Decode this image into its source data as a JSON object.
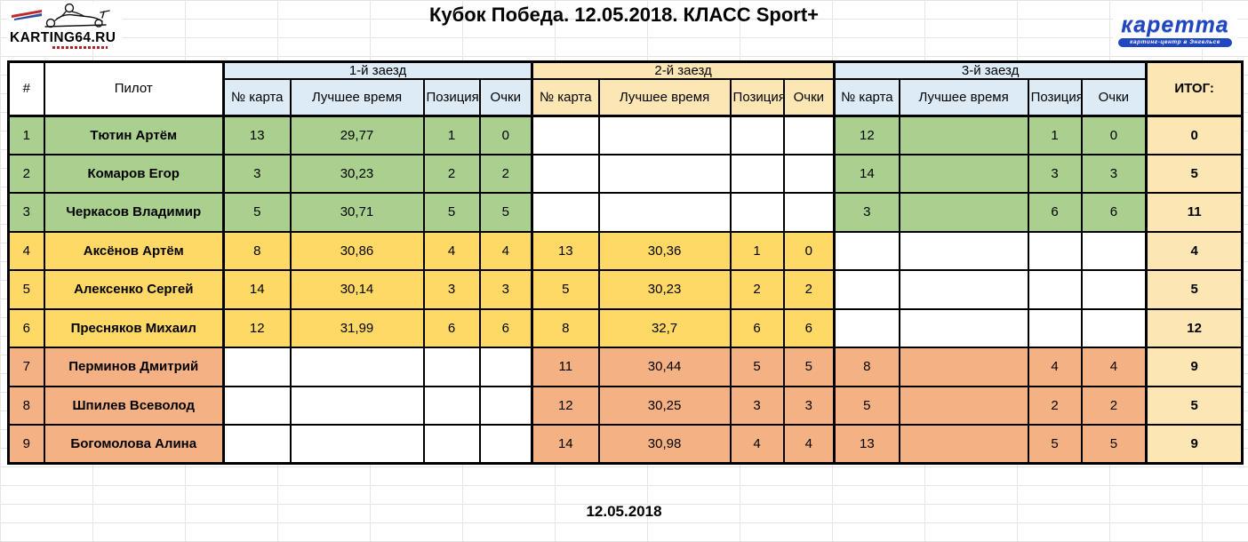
{
  "page": {
    "title": "Кубок Победа. 12.05.2018. КЛАСС Sport+",
    "footer_date": "12.05.2018"
  },
  "logos": {
    "karting64": {
      "text": "KARTING64.RU"
    },
    "karetta": {
      "text": "каретта",
      "tagline": "картинг-центр в Энгельсе"
    }
  },
  "colors": {
    "green": "#A9D08E",
    "yellow": "#FFD966",
    "orange": "#F4B183",
    "header_blue": "#DDEBF7",
    "cream": "#FBE6B4",
    "brand_blue": "#2046C0",
    "gridline": "#E4E4E4"
  },
  "table": {
    "headers": {
      "num": "#",
      "pilot": "Пилот",
      "heats": [
        "1-й заезд",
        "2-й заезд",
        "3-й заезд"
      ],
      "sub": [
        "№ карта",
        "Лучшее время",
        "Позиция",
        "Очки"
      ],
      "total": "ИТОГ:"
    },
    "rows": [
      {
        "num": "1",
        "pilot": "Тютин Артём",
        "color": "green",
        "heats": [
          {
            "kart": "13",
            "time": "29,77",
            "pos": "1",
            "pts": "0"
          },
          null,
          {
            "kart": "12",
            "time": "",
            "pos": "1",
            "pts": "0"
          }
        ],
        "total": "0"
      },
      {
        "num": "2",
        "pilot": "Комаров Егор",
        "color": "green",
        "heats": [
          {
            "kart": "3",
            "time": "30,23",
            "pos": "2",
            "pts": "2"
          },
          null,
          {
            "kart": "14",
            "time": "",
            "pos": "3",
            "pts": "3"
          }
        ],
        "total": "5"
      },
      {
        "num": "3",
        "pilot": "Черкасов Владимир",
        "color": "green",
        "heats": [
          {
            "kart": "5",
            "time": "30,71",
            "pos": "5",
            "pts": "5"
          },
          null,
          {
            "kart": "3",
            "time": "",
            "pos": "6",
            "pts": "6"
          }
        ],
        "total": "11"
      },
      {
        "num": "4",
        "pilot": "Аксёнов Артём",
        "color": "yellow",
        "heats": [
          {
            "kart": "8",
            "time": "30,86",
            "pos": "4",
            "pts": "4"
          },
          {
            "kart": "13",
            "time": "30,36",
            "pos": "1",
            "pts": "0"
          },
          null
        ],
        "total": "4"
      },
      {
        "num": "5",
        "pilot": "Алексенко Сергей",
        "color": "yellow",
        "heats": [
          {
            "kart": "14",
            "time": "30,14",
            "pos": "3",
            "pts": "3"
          },
          {
            "kart": "5",
            "time": "30,23",
            "pos": "2",
            "pts": "2"
          },
          null
        ],
        "total": "5"
      },
      {
        "num": "6",
        "pilot": "Пресняков Михаил",
        "color": "yellow",
        "heats": [
          {
            "kart": "12",
            "time": "31,99",
            "pos": "6",
            "pts": "6"
          },
          {
            "kart": "8",
            "time": "32,7",
            "pos": "6",
            "pts": "6"
          },
          null
        ],
        "total": "12"
      },
      {
        "num": "7",
        "pilot": "Перминов Дмитрий",
        "color": "orange",
        "heats": [
          null,
          {
            "kart": "11",
            "time": "30,44",
            "pos": "5",
            "pts": "5"
          },
          {
            "kart": "8",
            "time": "",
            "pos": "4",
            "pts": "4"
          }
        ],
        "total": "9"
      },
      {
        "num": "8",
        "pilot": "Шпилев Всеволод",
        "color": "orange",
        "heats": [
          null,
          {
            "kart": "12",
            "time": "30,25",
            "pos": "3",
            "pts": "3"
          },
          {
            "kart": "5",
            "time": "",
            "pos": "2",
            "pts": "2"
          }
        ],
        "total": "5"
      },
      {
        "num": "9",
        "pilot": "Богомолова Алина",
        "color": "orange",
        "heats": [
          null,
          {
            "kart": "14",
            "time": "30,98",
            "pos": "4",
            "pts": "4"
          },
          {
            "kart": "13",
            "time": "",
            "pos": "5",
            "pts": "5"
          }
        ],
        "total": "9"
      }
    ]
  }
}
